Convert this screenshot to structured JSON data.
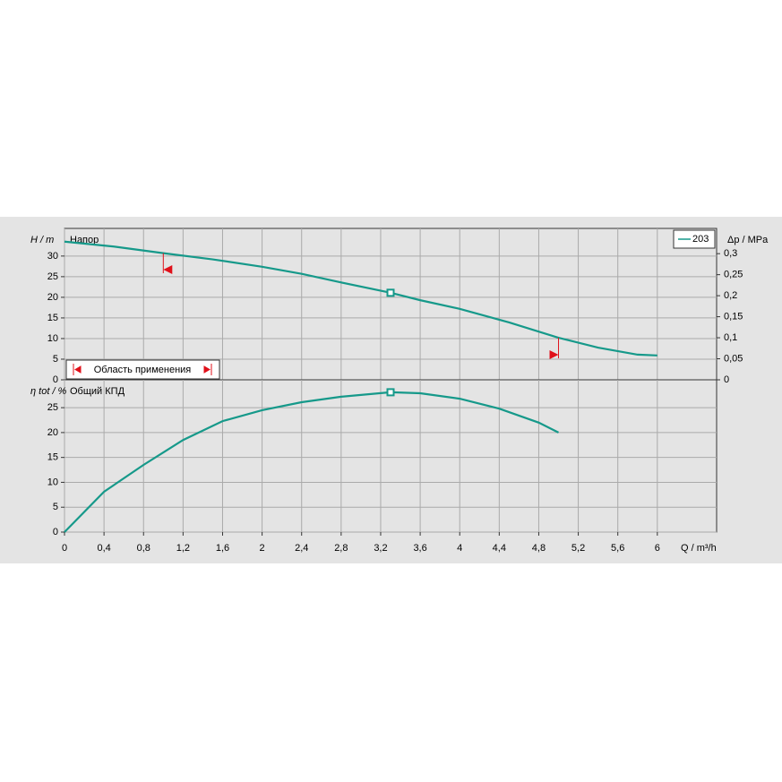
{
  "chart_data": [
    {
      "type": "line",
      "y_label": "H / m",
      "y2_label": "Δp / MPa",
      "annotation": "Напор",
      "range_label": "Область применения",
      "x": [
        0,
        0.5,
        1.0,
        1.5,
        2.0,
        2.4,
        2.8,
        3.3,
        3.6,
        4.0,
        4.5,
        5.0,
        5.4,
        5.8,
        6.0
      ],
      "series": [
        {
          "name": "203",
          "color": "#16998a",
          "values": [
            33.5,
            32.3,
            30.7,
            29.2,
            27.4,
            25.7,
            23.6,
            21.1,
            19.3,
            17.2,
            13.9,
            10.2,
            7.8,
            6.1,
            5.9
          ]
        }
      ],
      "xlim": [
        0,
        6.6
      ],
      "ylim": [
        0,
        36.7
      ],
      "yticks": [
        0,
        5,
        10,
        15,
        20,
        25,
        30
      ],
      "y2lim": [
        0,
        0.36
      ],
      "y2ticks": [
        0,
        {
          "value": 0.05,
          "label": "0,05"
        },
        {
          "value": 0.1,
          "label": "0,1"
        },
        {
          "value": 0.15,
          "label": "0,15"
        },
        {
          "value": 0.2,
          "label": "0,2"
        },
        {
          "value": 0.25,
          "label": "0,25"
        },
        {
          "value": 0.3,
          "label": "0,3"
        }
      ],
      "duty_point": {
        "x": 3.3,
        "y": 21.1
      },
      "application_range": [
        1.0,
        5.0
      ],
      "range_color": "#e0101a",
      "grid": true
    },
    {
      "type": "line",
      "y_label": "η tot / %",
      "annotation": "Общий КПД",
      "x_label": "Q / m³/h",
      "x": [
        0,
        0.4,
        0.8,
        1.2,
        1.6,
        2.0,
        2.4,
        2.8,
        3.3,
        3.6,
        4.0,
        4.4,
        4.8,
        5.0
      ],
      "series": [
        {
          "color": "#16998a",
          "values": [
            0,
            8.1,
            13.5,
            18.5,
            22.3,
            24.5,
            26.1,
            27.2,
            28.1,
            27.9,
            26.8,
            24.8,
            22,
            20
          ]
        }
      ],
      "xlim": [
        0,
        6.6
      ],
      "xticks": [
        0,
        {
          "value": 0.4,
          "label": "0,4"
        },
        {
          "value": 0.8,
          "label": "0,8"
        },
        {
          "value": 1.2,
          "label": "1,2"
        },
        {
          "value": 1.6,
          "label": "1,6"
        },
        2,
        {
          "value": 2.4,
          "label": "2,4"
        },
        {
          "value": 2.8,
          "label": "2,8"
        },
        {
          "value": 3.2,
          "label": "3,2"
        },
        {
          "value": 3.6,
          "label": "3,6"
        },
        4,
        {
          "value": 4.4,
          "label": "4,4"
        },
        {
          "value": 4.8,
          "label": "4,8"
        },
        {
          "value": 5.2,
          "label": "5,2"
        },
        {
          "value": 5.6,
          "label": "5,6"
        },
        6
      ],
      "ylim": [
        0,
        30.6
      ],
      "yticks": [
        0,
        5,
        10,
        15,
        20,
        25
      ],
      "duty_point": {
        "x": 3.3,
        "y": 28.1
      },
      "grid": true
    }
  ]
}
